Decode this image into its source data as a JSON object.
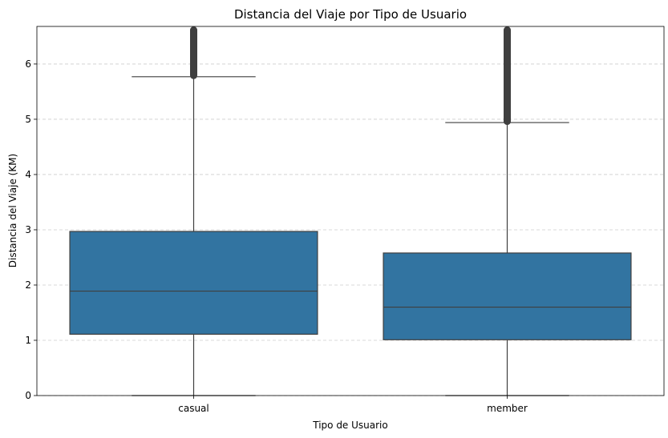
{
  "chart_data": {
    "type": "boxplot",
    "title": "Distancia del Viaje por Tipo de Usuario",
    "xlabel": "Tipo de Usuario",
    "ylabel": "Distancia del Viaje (KM)",
    "ylim": [
      0,
      6.68
    ],
    "yticks": [
      0,
      1,
      2,
      3,
      4,
      5,
      6
    ],
    "grid": "horizontal dashed",
    "categories": [
      "casual",
      "member"
    ],
    "boxes": [
      {
        "category": "casual",
        "whisker_low": 0.0,
        "q1": 1.11,
        "median": 1.89,
        "q3": 2.97,
        "whisker_high": 5.77,
        "outliers_from": 5.77,
        "outliers_to": 6.68
      },
      {
        "category": "member",
        "whisker_low": 0.0,
        "q1": 1.01,
        "median": 1.6,
        "q3": 2.58,
        "whisker_high": 4.94,
        "outliers_from": 4.94,
        "outliers_to": 6.68
      }
    ],
    "colors": {
      "box_fill": "#3274a1",
      "line": "#3f3f3f",
      "grid": "#cccccc"
    }
  }
}
